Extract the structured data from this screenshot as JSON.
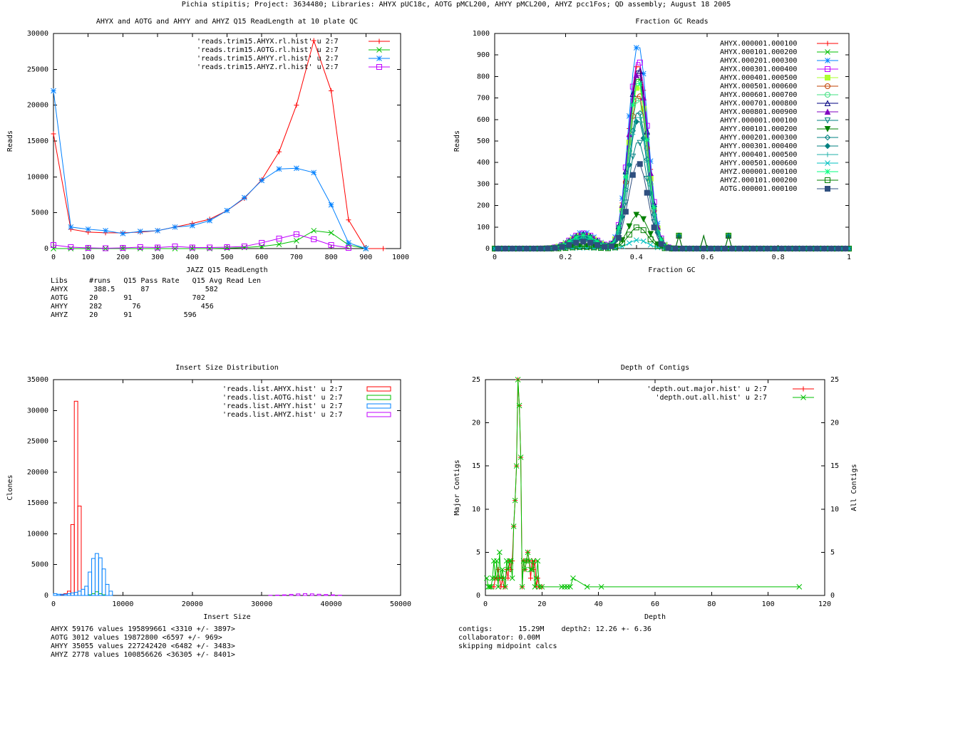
{
  "page_title": "Pichia stipitis; Project: 3634480; Libraries: AHYX pUC18c, AOTG pMCL200, AHYY pMCL200, AHYZ pcc1Fos; QD assembly; August 18 2005",
  "colors": {
    "red": "#ff0000",
    "green": "#00c000",
    "blue": "#0080ff",
    "magenta": "#c000ff",
    "lime": "#adff2f",
    "orange": "#c04000",
    "teal": "#008080",
    "navy": "#000080",
    "slate": "#2f4f7f",
    "seagreen": "#20b2aa",
    "spring": "#00ff7f",
    "mint": "#40e080"
  },
  "chart_data": [
    {
      "id": "readlength",
      "type": "line",
      "title": "AHYX and AOTG and AHYY and AHYZ Q15 ReadLength at 10 plate QC",
      "xlabel": "JAZZ Q15 ReadLength",
      "ylabel": "Reads",
      "xlim": [
        0,
        1000
      ],
      "ylim": [
        0,
        30000
      ],
      "xticks": [
        "0",
        "100",
        "200",
        "300",
        "400",
        "500",
        "600",
        "700",
        "800",
        "900",
        "1000"
      ],
      "yticks": [
        "0",
        "5000",
        "10000",
        "15000",
        "20000",
        "25000",
        "30000"
      ],
      "series": [
        {
          "name": "'reads.trim15.AHYX.rl.hist' u 2:7",
          "color": "#ff0000",
          "marker": "plus",
          "x": [
            0,
            50,
            100,
            150,
            200,
            250,
            300,
            350,
            400,
            450,
            500,
            550,
            600,
            650,
            700,
            750,
            800,
            850,
            900,
            950
          ],
          "y": [
            16000,
            2700,
            2300,
            2200,
            2200,
            2300,
            2500,
            3000,
            3500,
            4100,
            5300,
            7000,
            9600,
            13500,
            20000,
            29000,
            22000,
            4000,
            0,
            0
          ]
        },
        {
          "name": "'reads.trim15.AOTG.rl.hist' u 2:7",
          "color": "#00c000",
          "marker": "x",
          "x": [
            0,
            50,
            100,
            150,
            200,
            250,
            300,
            350,
            400,
            450,
            500,
            550,
            600,
            650,
            700,
            750,
            800,
            850,
            900
          ],
          "y": [
            0,
            0,
            0,
            0,
            0,
            0,
            0,
            0,
            0,
            0,
            50,
            150,
            300,
            600,
            1100,
            2500,
            2200,
            500,
            0
          ]
        },
        {
          "name": "'reads.trim15.AHYY.rl.hist' u 2:7",
          "color": "#0080ff",
          "marker": "star",
          "x": [
            0,
            50,
            100,
            150,
            200,
            250,
            300,
            350,
            400,
            450,
            500,
            550,
            600,
            650,
            700,
            750,
            800,
            850,
            900
          ],
          "y": [
            22000,
            3000,
            2700,
            2500,
            2100,
            2400,
            2500,
            3000,
            3200,
            3900,
            5300,
            7100,
            9500,
            11100,
            11200,
            10600,
            6100,
            800,
            0
          ]
        },
        {
          "name": "'reads.trim15.AHYZ.rl.hist' u 2:7",
          "color": "#c000ff",
          "marker": "square",
          "x": [
            0,
            50,
            100,
            150,
            200,
            250,
            300,
            350,
            400,
            450,
            500,
            550,
            600,
            650,
            700,
            750,
            800,
            850
          ],
          "y": [
            500,
            200,
            100,
            50,
            100,
            200,
            150,
            300,
            150,
            150,
            200,
            300,
            800,
            1400,
            2000,
            1300,
            500,
            100
          ]
        }
      ],
      "footer": [
        "Libs     #runs   Q15 Pass Rate   Q15 Avg Read Len",
        "AHYX      388.5      87             582",
        "AOTG     20      91              702",
        "AHYY     282       76              456",
        "AHYZ     20      91            596"
      ]
    },
    {
      "id": "fractiongc",
      "type": "scatter",
      "title": "Fraction GC Reads",
      "xlabel": "Fraction GC",
      "ylabel": "Reads",
      "xlim": [
        0,
        1
      ],
      "ylim": [
        0,
        1000
      ],
      "xticks": [
        "0",
        "0.2",
        "0.4",
        "0.6",
        "0.8",
        "1"
      ],
      "yticks": [
        "0",
        "100",
        "200",
        "300",
        "400",
        "500",
        "600",
        "700",
        "800",
        "900",
        "1000"
      ],
      "series": [
        {
          "name": "AHYX.000001.000100",
          "color": "#ff0000",
          "marker": "plus",
          "peak": 860
        },
        {
          "name": "AHYX.000101.000200",
          "color": "#00c000",
          "marker": "x",
          "peak": 800
        },
        {
          "name": "AHYX.000201.000300",
          "color": "#0080ff",
          "marker": "star",
          "peak": 950
        },
        {
          "name": "AHYX.000301.000400",
          "color": "#c000ff",
          "marker": "square",
          "peak": 880
        },
        {
          "name": "AHYX.000401.000500",
          "color": "#adff2f",
          "marker": "fsquare",
          "peak": 760
        },
        {
          "name": "AHYX.000501.000600",
          "color": "#c04000",
          "marker": "circle",
          "peak": 720
        },
        {
          "name": "AHYX.000601.000700",
          "color": "#40e080",
          "marker": "circle",
          "peak": 700
        },
        {
          "name": "AHYX.000701.000800",
          "color": "#000080",
          "marker": "triangle",
          "peak": 840
        },
        {
          "name": "AHYX.000801.000900",
          "color": "#8000c0",
          "marker": "ftriangle",
          "peak": 820
        },
        {
          "name": "AHYY.000001.000100",
          "color": "#008080",
          "marker": "itriangle",
          "peak": 500
        },
        {
          "name": "AHYY.000101.000200",
          "color": "#008000",
          "marker": "fitriangle",
          "peak": 160
        },
        {
          "name": "AHYY.000201.000300",
          "color": "#008080",
          "marker": "diamond",
          "peak": 640
        },
        {
          "name": "AHYY.000301.000400",
          "color": "#008080",
          "marker": "fdiamond",
          "peak": 600
        },
        {
          "name": "AHYY.000401.000500",
          "color": "#20b2aa",
          "marker": "plus",
          "peak": 620
        },
        {
          "name": "AHYY.000501.000600",
          "color": "#00c0c0",
          "marker": "x",
          "peak": 40
        },
        {
          "name": "AHYZ.000001.000100",
          "color": "#00ff7f",
          "marker": "star",
          "peak": 780
        },
        {
          "name": "AHYZ.000101.000200",
          "color": "#008000",
          "marker": "square",
          "peak": 100
        },
        {
          "name": "AOTG.000001.000100",
          "color": "#2f4f7f",
          "marker": "fsquare",
          "peak": 400
        }
      ]
    },
    {
      "id": "insertsize",
      "type": "bar",
      "title": "Insert Size Distribution",
      "xlabel": "Insert Size",
      "ylabel": "Clones",
      "xlim": [
        0,
        50000
      ],
      "ylim": [
        0,
        35000
      ],
      "xticks": [
        "0",
        "10000",
        "20000",
        "30000",
        "40000",
        "50000"
      ],
      "yticks": [
        "0",
        "5000",
        "10000",
        "15000",
        "20000",
        "25000",
        "30000",
        "35000"
      ],
      "bin_width": 500,
      "series": [
        {
          "name": "'reads.list.AHYX.hist' u 2:7",
          "color": "#ff0000",
          "x": [
            1000,
            1500,
            2000,
            2500,
            3000,
            3500
          ],
          "y": [
            100,
            300,
            700,
            11500,
            31500,
            14500
          ]
        },
        {
          "name": "'reads.list.AOTG.hist' u 2:7",
          "color": "#00c000",
          "x": [
            5000,
            5500,
            6000,
            6500,
            7000
          ],
          "y": [
            100,
            300,
            600,
            300,
            100
          ]
        },
        {
          "name": "'reads.list.AHYY.hist' u 2:7",
          "color": "#0080ff",
          "x": [
            0,
            500,
            1000,
            1500,
            2000,
            2500,
            3000,
            3500,
            4000,
            4500,
            5000,
            5500,
            6000,
            6500,
            7000,
            7500,
            8000
          ],
          "y": [
            300,
            200,
            200,
            200,
            300,
            400,
            500,
            700,
            1000,
            1500,
            3800,
            6000,
            6800,
            6100,
            4300,
            1800,
            700
          ]
        },
        {
          "name": "'reads.list.AHYZ.hist' u 2:7",
          "color": "#c000ff",
          "x": [
            31000,
            32000,
            33000,
            34000,
            35000,
            36000,
            37000,
            38000,
            39000,
            40000,
            41000
          ],
          "y": [
            30,
            60,
            100,
            180,
            250,
            300,
            260,
            200,
            150,
            100,
            50
          ]
        }
      ],
      "footer": [
        "AHYX 59176 values 195899661 <3310 +/- 3897>",
        "AOTG 3012 values 19872800 <6597 +/- 969>",
        "AHYY 35055 values 227242420 <6482 +/- 3483>",
        "AHYZ 2778 values 100856626 <36305 +/- 8401>"
      ]
    },
    {
      "id": "depth",
      "type": "line",
      "title": "Depth of Contigs",
      "xlabel": "Depth",
      "ylabel": "Major Contigs",
      "y2label": "All Contigs",
      "xlim": [
        0,
        120
      ],
      "ylim": [
        0,
        25
      ],
      "xticks": [
        "0",
        "20",
        "40",
        "60",
        "80",
        "100",
        "120"
      ],
      "yticks": [
        "0",
        "5",
        "10",
        "15",
        "20",
        "25"
      ],
      "series": [
        {
          "name": "'depth.out.major.hist' u 2:7",
          "color": "#ff0000",
          "marker": "plus",
          "x": [
            2,
            3,
            3.5,
            4,
            4.5,
            5,
            5.5,
            6,
            6.5,
            7,
            7.5,
            8,
            8.5,
            9,
            9.5,
            10,
            10.5,
            11,
            11.5,
            12,
            12.5,
            13,
            13.5,
            14,
            14.5,
            15,
            15.5,
            16,
            16.5,
            17,
            17.5,
            18,
            18.5,
            19,
            20
          ],
          "y": [
            1,
            1,
            2,
            2,
            3,
            2,
            1,
            2,
            1,
            1,
            3,
            2,
            4,
            3,
            4,
            8,
            11,
            15,
            25,
            22,
            16,
            1,
            4,
            3,
            4,
            5,
            4,
            2,
            4,
            3,
            4,
            1,
            2,
            1,
            1
          ]
        },
        {
          "name": "'depth.out.all.hist' u 2:7",
          "color": "#00c000",
          "marker": "x",
          "x": [
            0.5,
            1,
            1.5,
            2,
            2.5,
            3,
            3.5,
            4,
            4.5,
            5,
            5.5,
            6,
            6.5,
            7,
            7.5,
            8,
            8.5,
            9,
            9.5,
            10,
            10.5,
            11,
            11.5,
            12,
            12.5,
            13,
            13.5,
            14,
            14.5,
            15,
            15.5,
            16,
            16.5,
            17,
            17.5,
            18,
            18.5,
            19,
            20,
            27,
            28,
            29,
            30,
            31,
            36,
            41,
            111
          ],
          "y": [
            2,
            1,
            1,
            1,
            2,
            4,
            2,
            4,
            1,
            5,
            2,
            3,
            2,
            1,
            4,
            3,
            4,
            4,
            2,
            8,
            11,
            15,
            25,
            22,
            16,
            1,
            4,
            3,
            4,
            5,
            4,
            3,
            3,
            4,
            1,
            2,
            4,
            1,
            1,
            1,
            1,
            1,
            1,
            2,
            1,
            1,
            1
          ]
        }
      ],
      "footer": [
        "contigs:      15.29M    depth2: 12.26 +- 6.36",
        "collaborator: 0.00M",
        "skipping midpoint calcs"
      ]
    }
  ]
}
